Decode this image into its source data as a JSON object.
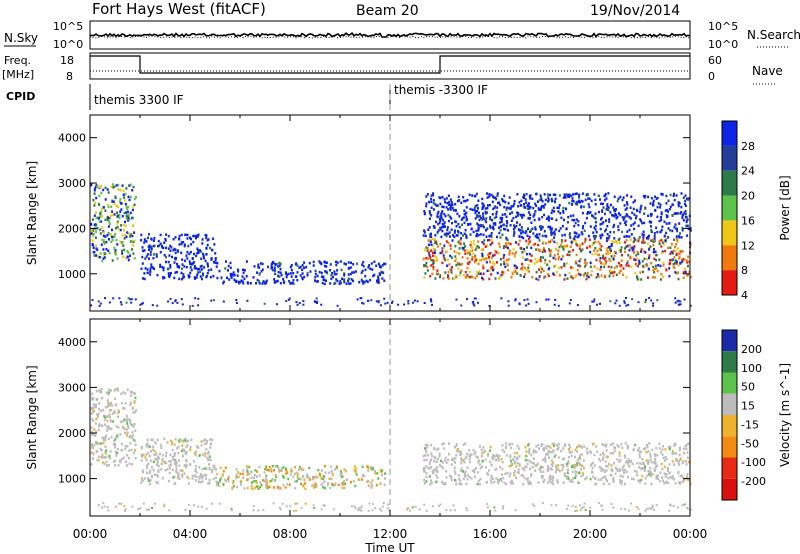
{
  "header": {
    "station": "Fort Hays West (fitACF)",
    "beam": "Beam 20",
    "date": "19/Nov/2014"
  },
  "summary": {
    "nsky_label": "N.Sky",
    "nsky_ticks": [
      "10^5",
      "10^0"
    ],
    "nsearch_label": "N.Search",
    "right_ticks_top": [
      "10^5",
      "10^0"
    ],
    "freq_label": "Freq.",
    "freq_unit": "[MHz]",
    "freq_ticks": [
      "18",
      "8"
    ],
    "nave_label": "Nave",
    "nave_ticks": [
      "60",
      "0"
    ],
    "cpid_label": "CPID",
    "cpid_segments": [
      {
        "start_hour": 0,
        "label": "themis 3300 IF"
      },
      {
        "start_hour": 12,
        "label": "themis -3300 IF"
      }
    ],
    "freq_mode_segments": [
      {
        "start_hour": 0,
        "end_hour": 2,
        "level": "high"
      },
      {
        "start_hour": 2,
        "end_hour": 14,
        "level": "low"
      },
      {
        "start_hour": 14,
        "end_hour": 24,
        "level": "high"
      }
    ]
  },
  "chart_data": [
    {
      "type": "heatmap",
      "name": "power",
      "ylabel": "Slant Range [km]",
      "yticks": [
        1000,
        2000,
        3000,
        4000
      ],
      "ylim": [
        180,
        4500
      ],
      "xlim": [
        0,
        24
      ],
      "colorbar_label": "Power [dB]",
      "colorbar_ticks": [
        "28",
        "24",
        "20",
        "16",
        "12",
        "8",
        "4"
      ],
      "colors": [
        "#0b24e6",
        "#233d9a",
        "#2c7a4a",
        "#5bc24a",
        "#f2c616",
        "#f07a0c",
        "#e51a12"
      ],
      "regions": [
        {
          "x": [
            0.0,
            1.8
          ],
          "y": [
            1300,
            3000
          ],
          "level": "mixed"
        },
        {
          "x": [
            2.0,
            5.0
          ],
          "y": [
            900,
            1900
          ],
          "level": "low"
        },
        {
          "x": [
            5.0,
            11.8
          ],
          "y": [
            800,
            1300
          ],
          "level": "low"
        },
        {
          "x": [
            13.3,
            24.0
          ],
          "y": [
            900,
            1800
          ],
          "level": "high"
        },
        {
          "x": [
            13.3,
            24.0
          ],
          "y": [
            1800,
            2800
          ],
          "level": "low"
        }
      ]
    },
    {
      "type": "heatmap",
      "name": "velocity",
      "ylabel": "Slant Range [km]",
      "yticks": [
        1000,
        2000,
        3000,
        4000
      ],
      "ylim": [
        180,
        4500
      ],
      "xlim": [
        0,
        24
      ],
      "colorbar_label": "Velocity [m s^-1]",
      "colorbar_ticks": [
        "200",
        "100",
        "50",
        "15",
        "-15",
        "-50",
        "-100",
        "-200"
      ],
      "colors": [
        "#1a2aa8",
        "#2d7a4a",
        "#5cc24a",
        "#bcbcbc",
        "#f0b22a",
        "#f58a10",
        "#ea2a12",
        "#dc0f0f"
      ],
      "regions": [
        {
          "x": [
            0.0,
            1.8
          ],
          "y": [
            1300,
            3000
          ],
          "level": "grey"
        },
        {
          "x": [
            2.0,
            5.0
          ],
          "y": [
            900,
            1900
          ],
          "level": "grey"
        },
        {
          "x": [
            5.0,
            11.8
          ],
          "y": [
            800,
            1300
          ],
          "level": "mixed"
        },
        {
          "x": [
            13.3,
            24.0
          ],
          "y": [
            900,
            1800
          ],
          "level": "grey"
        }
      ]
    }
  ],
  "xaxis": {
    "ticks": [
      "00:00",
      "04:00",
      "08:00",
      "12:00",
      "16:00",
      "20:00",
      "00:00"
    ],
    "label": "Time UT"
  }
}
